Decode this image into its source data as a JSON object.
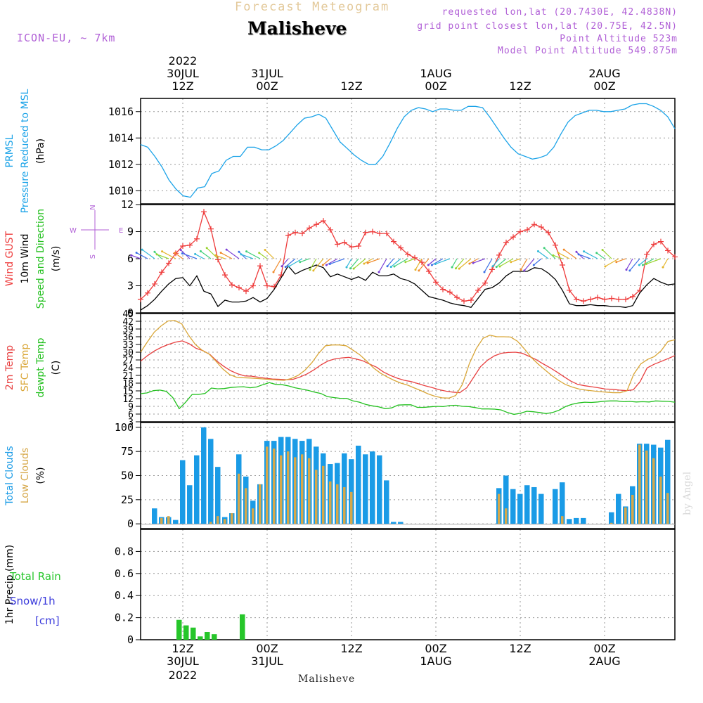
{
  "header": {
    "subtitle": "Forecast Meteogram",
    "title": "Malisheve",
    "model": "ICON-EU,  ~ 7km",
    "requested": "requested lon,lat (20.7430E, 42.4838N)",
    "grid_point": "grid point closest lon,lat (20.75E, 42.5N)",
    "point_alt": "Point Altitude 523m",
    "model_alt": "Model Point Altitude 549.875m"
  },
  "footer": {
    "station": "Malisheve",
    "signature": "by Angel"
  },
  "colors": {
    "pressure": "#1ba3e8",
    "gust": "#ee3a3a",
    "wind": "#000000",
    "dir": "#22c01e",
    "t2m": "#e84040",
    "sfc": "#d9a637",
    "dew": "#22c01e",
    "total_cloud": "#1a9be6",
    "low_cloud": "#d6a84a",
    "rain": "#26c62a",
    "snow": "#3b3bdc",
    "compass": "#b05fd6"
  },
  "chart_data": [
    {
      "type": "line",
      "id": "pressure",
      "ylabels": [
        {
          "text": "PRMSL",
          "color": "#1ba3e8"
        },
        {
          "text": "Pressure Reduced to MSL",
          "color": "#1ba3e8"
        },
        {
          "text": "(hPa)",
          "color": "#000"
        }
      ],
      "ylim": [
        1009,
        1017
      ],
      "yticks": [
        1010,
        1012,
        1014,
        1016
      ],
      "series": [
        {
          "values": [
            1013.5,
            1013.3,
            1012.6,
            1011.8,
            1010.8,
            1010.1,
            1009.6,
            1009.5,
            1010.2,
            1010.3,
            1011.3,
            1011.5,
            1012.3,
            1012.6,
            1012.6,
            1013.3,
            1013.3,
            1013.1,
            1013.1,
            1013.4,
            1013.8,
            1014.4,
            1015.0,
            1015.5,
            1015.6,
            1015.8,
            1015.5,
            1014.6,
            1013.7,
            1013.2,
            1012.7,
            1012.3,
            1012.0,
            1012.0,
            1012.6,
            1013.6,
            1014.7,
            1015.6,
            1016.1,
            1016.3,
            1016.2,
            1016.0,
            1016.2,
            1016.2,
            1016.1,
            1016.1,
            1016.4,
            1016.4,
            1016.3,
            1015.6,
            1014.8,
            1014.0,
            1013.3,
            1012.8,
            1012.6,
            1012.4,
            1012.5,
            1012.7,
            1013.3,
            1014.3,
            1015.2,
            1015.7,
            1015.9,
            1016.1,
            1016.1,
            1016.0,
            1016.0,
            1016.1,
            1016.2,
            1016.5,
            1016.6,
            1016.6,
            1016.4,
            1016.1,
            1015.6,
            1014.7
          ]
        }
      ]
    },
    {
      "type": "line",
      "id": "wind",
      "ylabels": [
        {
          "text": "Wind GUST",
          "color": "#ee3a3a"
        },
        {
          "text": "10m Wind",
          "color": "#000"
        },
        {
          "text": "Speed and Direction",
          "color": "#22c01e"
        },
        {
          "text": "(m/s)",
          "color": "#000"
        }
      ],
      "compass": {
        "w": "W",
        "e": "E",
        "n": "N",
        "s": "S"
      },
      "ylim": [
        0,
        12
      ],
      "yticks": [
        0,
        3,
        6,
        9,
        12
      ],
      "series": [
        {
          "name": "gust",
          "values": [
            1.5,
            2.2,
            3.2,
            4.5,
            5.5,
            6.6,
            7.4,
            7.5,
            8.2,
            11.2,
            9.3,
            5.9,
            4.2,
            3.1,
            2.8,
            2.4,
            3.0,
            5.2,
            3.0,
            2.9,
            4.2,
            8.6,
            8.9,
            8.8,
            9.4,
            9.8,
            10.2,
            9.2,
            7.6,
            7.8,
            7.3,
            7.4,
            8.9,
            9.0,
            8.8,
            8.8,
            7.9,
            7.2,
            6.5,
            6.1,
            5.6,
            4.6,
            3.4,
            2.6,
            2.3,
            1.7,
            1.3,
            1.4,
            2.5,
            3.3,
            4.8,
            6.4,
            7.8,
            8.4,
            9.0,
            9.2,
            9.8,
            9.5,
            8.9,
            7.5,
            5.3,
            2.5,
            1.5,
            1.3,
            1.5,
            1.7,
            1.5,
            1.6,
            1.5,
            1.5,
            1.8,
            2.5,
            6.5,
            7.6,
            7.9,
            6.9,
            6.2
          ]
        },
        {
          "name": "wind",
          "values": [
            0.3,
            0.8,
            1.5,
            2.4,
            3.2,
            3.8,
            3.9,
            3.0,
            4.1,
            2.4,
            2.1,
            0.7,
            1.4,
            1.2,
            1.2,
            1.3,
            1.7,
            1.2,
            1.6,
            2.6,
            3.9,
            5.2,
            4.3,
            4.7,
            5.0,
            5.3,
            5.0,
            4.0,
            4.3,
            4.0,
            3.7,
            4.0,
            3.6,
            4.5,
            4.1,
            4.1,
            4.3,
            3.8,
            3.6,
            3.2,
            2.5,
            1.8,
            1.6,
            1.4,
            1.1,
            0.9,
            0.8,
            0.6,
            1.6,
            2.6,
            2.8,
            3.3,
            4.1,
            4.6,
            4.6,
            4.6,
            5.0,
            4.9,
            4.4,
            3.7,
            2.5,
            1.0,
            0.8,
            0.8,
            0.9,
            0.8,
            0.8,
            0.7,
            0.7,
            0.6,
            0.8,
            2.2,
            3.1,
            3.8,
            3.4,
            3.1,
            3.2
          ]
        }
      ]
    },
    {
      "type": "line",
      "id": "temperature",
      "ylabels": [
        {
          "text": "2m Temp",
          "color": "#e84040"
        },
        {
          "text": "SFC Temp",
          "color": "#d9a637"
        },
        {
          "text": "dewpt Temp",
          "color": "#22c01e"
        },
        {
          "text": "(C)",
          "color": "#000"
        }
      ],
      "ylim": [
        3,
        45
      ],
      "yticks": [
        3,
        6,
        9,
        12,
        15,
        18,
        21,
        24,
        27,
        30,
        33,
        36,
        39,
        42,
        45
      ],
      "series": [
        {
          "name": "t2m",
          "values": [
            26.5,
            28.7,
            30.5,
            31.9,
            33.0,
            33.9,
            34.4,
            33.3,
            31.5,
            30.6,
            29.1,
            26.5,
            24.5,
            22.8,
            21.6,
            20.8,
            20.7,
            20.3,
            19.9,
            19.6,
            19.5,
            19.3,
            19.5,
            20.4,
            21.6,
            23.2,
            25.1,
            26.6,
            27.4,
            27.8,
            28.0,
            27.4,
            26.7,
            25.4,
            24.2,
            22.3,
            21.0,
            19.9,
            19.1,
            18.6,
            17.8,
            17.0,
            16.3,
            15.5,
            14.9,
            14.5,
            14.3,
            16.2,
            20.3,
            24.4,
            26.9,
            28.6,
            29.6,
            29.9,
            30.0,
            29.6,
            28.4,
            27.1,
            25.5,
            24.0,
            22.3,
            20.5,
            18.8,
            17.5,
            17.0,
            16.6,
            16.2,
            15.7,
            15.6,
            15.3,
            15.1,
            15.4,
            18.6,
            23.9,
            25.3,
            26.4,
            27.5,
            28.7
          ]
        },
        {
          "name": "sfc",
          "values": [
            30.0,
            34.0,
            37.8,
            40.2,
            42.1,
            42.3,
            41.0,
            36.6,
            33.0,
            30.7,
            29.3,
            26.5,
            23.5,
            21.3,
            20.3,
            20.1,
            20.0,
            19.8,
            19.6,
            19.4,
            19.2,
            19.1,
            19.8,
            21.0,
            23.0,
            25.9,
            29.6,
            32.5,
            32.8,
            32.8,
            32.5,
            30.8,
            29.0,
            26.6,
            23.9,
            21.9,
            20.4,
            19.1,
            18.0,
            17.2,
            16.1,
            15.0,
            13.8,
            12.9,
            12.3,
            12.2,
            13.2,
            17.6,
            25.6,
            31.4,
            35.4,
            36.6,
            36.0,
            36.0,
            35.9,
            34.3,
            31.4,
            28.1,
            25.5,
            23.2,
            21.0,
            19.1,
            17.5,
            16.5,
            15.7,
            15.3,
            15.0,
            14.7,
            14.5,
            14.3,
            14.3,
            15.0,
            21.5,
            25.4,
            27.2,
            28.3,
            30.6,
            34.2,
            34.8
          ]
        },
        {
          "name": "dew",
          "values": [
            13.9,
            14.2,
            15.1,
            15.3,
            14.8,
            12.4,
            8.1,
            10.6,
            13.6,
            13.6,
            14.0,
            16.1,
            15.8,
            15.9,
            16.3,
            16.5,
            16.6,
            16.2,
            16.5,
            17.4,
            18.2,
            17.5,
            17.4,
            16.9,
            16.2,
            15.7,
            15.2,
            14.5,
            14.0,
            12.8,
            12.4,
            12.1,
            12.1,
            11.1,
            10.6,
            9.7,
            9.2,
            8.8,
            8.1,
            8.4,
            9.5,
            9.6,
            9.6,
            8.6,
            8.6,
            8.8,
            9.0,
            8.9,
            9.3,
            9.4,
            9.0,
            8.9,
            8.5,
            8.0,
            8.0,
            7.9,
            7.6,
            6.6,
            5.9,
            6.3,
            7.1,
            6.9,
            6.6,
            6.2,
            6.6,
            7.5,
            8.9,
            9.8,
            10.3,
            10.6,
            10.5,
            10.7,
            11.0,
            11.1,
            11.1,
            10.8,
            10.9,
            10.7,
            10.8,
            10.7,
            11.1,
            11.0,
            10.9,
            10.6
          ]
        }
      ]
    },
    {
      "type": "bar",
      "id": "clouds",
      "ylabels": [
        {
          "text": "Total Clouds",
          "color": "#1a9be6"
        },
        {
          "text": "Low Clouds",
          "color": "#d6a84a"
        },
        {
          "text": "(%)",
          "color": "#000"
        }
      ],
      "ylim": [
        -5,
        105
      ],
      "yticks": [
        0,
        25,
        50,
        75,
        100
      ],
      "series": [
        {
          "name": "total",
          "values": [
            0,
            16,
            7,
            7,
            4,
            66,
            40,
            71,
            100,
            88,
            59,
            7,
            11,
            72,
            49,
            24,
            41,
            86,
            86,
            90,
            90,
            88,
            86,
            88,
            80,
            73,
            62,
            63,
            73,
            67,
            81,
            72,
            75,
            71,
            45,
            2,
            2,
            0,
            0,
            0,
            0,
            0,
            0,
            0,
            0,
            0,
            0,
            0,
            0,
            0,
            37,
            50,
            36,
            31,
            40,
            38,
            31,
            0,
            36,
            43,
            5,
            6,
            6,
            0,
            0,
            0,
            12,
            31,
            18,
            39,
            83,
            83,
            82,
            79,
            87
          ]
        },
        {
          "name": "low",
          "values": [
            0,
            0,
            6,
            8,
            0,
            0,
            0,
            0,
            0,
            2,
            8,
            5,
            11,
            52,
            37,
            16,
            41,
            80,
            78,
            71,
            75,
            69,
            72,
            68,
            56,
            60,
            44,
            41,
            38,
            33,
            0,
            0,
            0,
            0,
            0,
            0,
            0,
            0,
            0,
            0,
            0,
            0,
            0,
            0,
            0,
            0,
            0,
            0,
            0,
            0,
            31,
            16,
            0,
            0,
            0,
            0,
            0,
            0,
            0,
            8,
            0,
            0,
            0,
            0,
            0,
            0,
            1,
            0,
            17,
            30,
            82,
            76,
            68,
            49,
            32
          ]
        }
      ]
    },
    {
      "type": "bar",
      "id": "precip",
      "ylabels": [
        {
          "text": "1hr Precip (mm)",
          "color": "#000"
        }
      ],
      "side_labels": {
        "total_rain": "Total  Rain",
        "snow": "Snow/1h",
        "snow_unit": "[cm]"
      },
      "ylim": [
        0,
        1.0
      ],
      "yticks": [
        0,
        0.2,
        0.4,
        0.6,
        0.8
      ],
      "series": [
        {
          "name": "rain",
          "values": [
            0,
            0,
            0,
            0,
            0,
            0.18,
            0.13,
            0.11,
            0.03,
            0.07,
            0.05,
            0,
            0,
            0,
            0.23
          ]
        }
      ]
    }
  ],
  "time_axis": {
    "top": [
      {
        "line1": "2022",
        "line2": "30JUL",
        "line3": "12Z",
        "at": 6
      },
      {
        "line1": "",
        "line2": "31JUL",
        "line3": "00Z",
        "at": 18
      },
      {
        "line1": "",
        "line2": "",
        "line3": "12Z",
        "at": 30
      },
      {
        "line1": "",
        "line2": "1AUG",
        "line3": "00Z",
        "at": 42
      },
      {
        "line1": "",
        "line2": "",
        "line3": "12Z",
        "at": 54
      },
      {
        "line1": "",
        "line2": "2AUG",
        "line3": "00Z",
        "at": 66
      }
    ],
    "bottom": [
      {
        "line1": "12Z",
        "line2": "30JUL",
        "line3": "2022",
        "at": 6
      },
      {
        "line1": "00Z",
        "line2": "31JUL",
        "line3": "",
        "at": 18
      },
      {
        "line1": "12Z",
        "line2": "",
        "line3": "",
        "at": 30
      },
      {
        "line1": "00Z",
        "line2": "1AUG",
        "line3": "",
        "at": 42
      },
      {
        "line1": "12Z",
        "line2": "",
        "line3": "",
        "at": 54
      },
      {
        "line1": "00Z",
        "line2": "2AUG",
        "line3": "",
        "at": 66
      }
    ],
    "range": [
      0,
      76
    ]
  }
}
